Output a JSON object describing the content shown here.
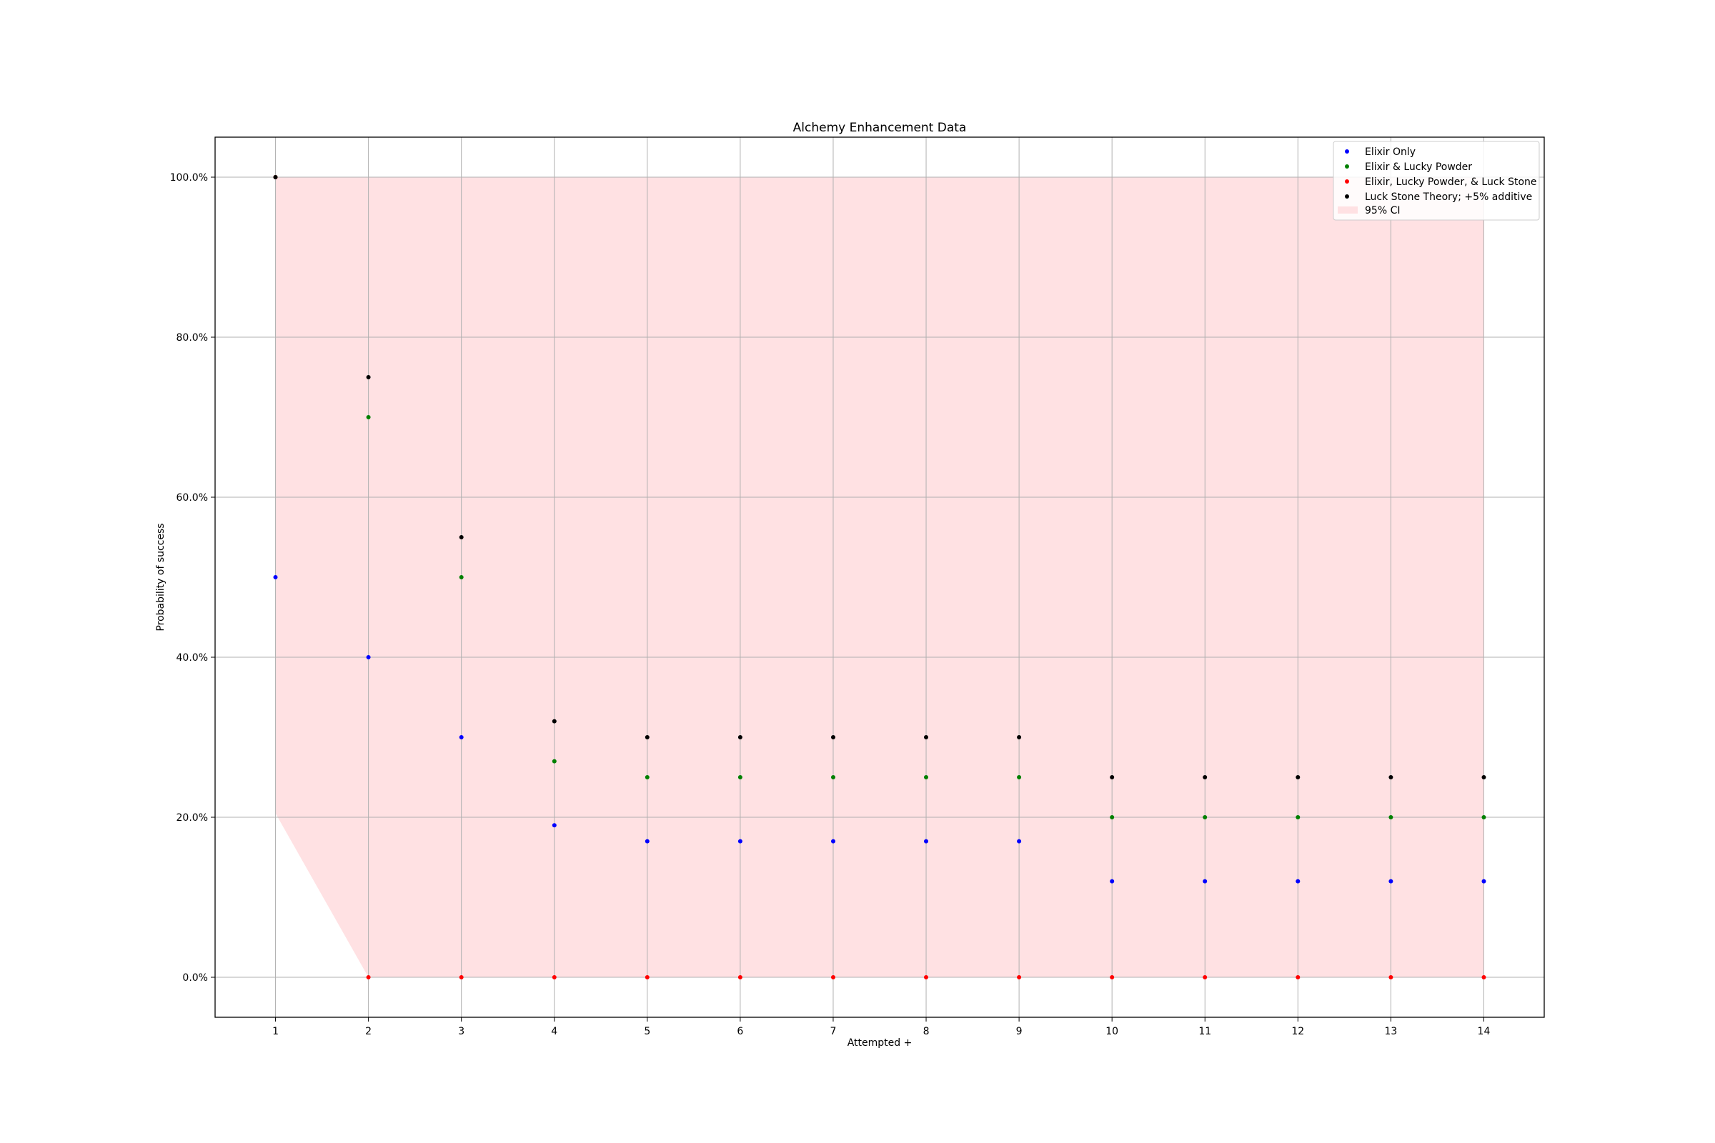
{
  "chart_data": {
    "type": "scatter",
    "title": "Alchemy Enhancement Data",
    "xlabel": "Attempted +",
    "ylabel": "Probability of success",
    "x": [
      1,
      2,
      3,
      4,
      5,
      6,
      7,
      8,
      9,
      10,
      11,
      12,
      13,
      14
    ],
    "xlim": [
      0.35,
      14.65
    ],
    "ylim": [
      -0.05,
      1.05
    ],
    "x_ticks": [
      1,
      2,
      3,
      4,
      5,
      6,
      7,
      8,
      9,
      10,
      11,
      12,
      13,
      14
    ],
    "y_ticks": [
      0.0,
      0.2,
      0.4,
      0.6,
      0.8,
      1.0
    ],
    "y_tick_labels": [
      "0.0%",
      "20.0%",
      "40.0%",
      "60.0%",
      "80.0%",
      "100.0%"
    ],
    "grid": true,
    "legend_position": "top-right",
    "series": [
      {
        "name": "Elixir Only",
        "color": "#0000ff",
        "values": [
          0.5,
          0.4,
          0.3,
          0.19,
          0.17,
          0.17,
          0.17,
          0.17,
          0.17,
          0.12,
          0.12,
          0.12,
          0.12,
          0.12
        ]
      },
      {
        "name": "Elixir & Lucky Powder",
        "color": "#008000",
        "values": [
          1.0,
          0.7,
          0.5,
          0.27,
          0.25,
          0.25,
          0.25,
          0.25,
          0.25,
          0.2,
          0.2,
          0.2,
          0.2,
          0.2
        ]
      },
      {
        "name": "Elixir, Lucky Powder, & Luck Stone",
        "color": "#ff0000",
        "values": [
          1.0,
          0.0,
          0.0,
          0.0,
          0.0,
          0.0,
          0.0,
          0.0,
          0.0,
          0.0,
          0.0,
          0.0,
          0.0,
          0.0
        ]
      },
      {
        "name": "Luck Stone Theory; +5% additive",
        "color": "#000000",
        "values": [
          1.0,
          0.75,
          0.55,
          0.32,
          0.3,
          0.3,
          0.3,
          0.3,
          0.3,
          0.25,
          0.25,
          0.25,
          0.25,
          0.25
        ]
      }
    ],
    "ci": {
      "name": "95% CI",
      "color": "#ffe1e3",
      "lower": [
        0.205,
        0.0,
        0.0,
        0.0,
        0.0,
        0.0,
        0.0,
        0.0,
        0.0,
        0.0,
        0.0,
        0.0,
        0.0,
        0.0
      ],
      "upper": [
        1.0,
        1.0,
        1.0,
        1.0,
        1.0,
        1.0,
        1.0,
        1.0,
        1.0,
        1.0,
        1.0,
        1.0,
        1.0,
        1.0
      ]
    }
  }
}
